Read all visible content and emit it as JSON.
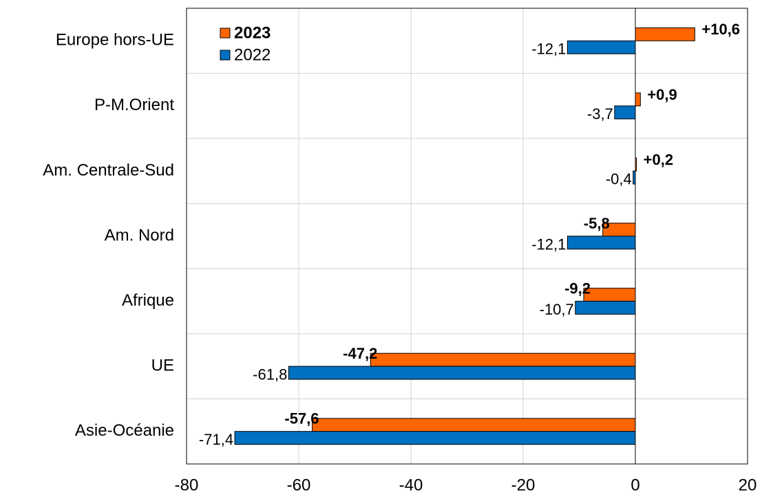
{
  "chart_data": {
    "type": "barh",
    "categories": [
      "Europe hors-UE",
      "P-M.Orient",
      "Am. Centrale-Sud",
      "Am. Nord",
      "Afrique",
      "UE",
      "Asie-Océanie"
    ],
    "series": [
      {
        "name": "2023",
        "color": "#ff6600",
        "values": [
          10.6,
          0.9,
          0.2,
          -5.8,
          -9.2,
          -47.2,
          -57.6
        ],
        "value_labels": [
          "+10,6",
          "+0,9",
          "+0,2",
          "-5,8",
          "-9,2",
          "-47,2",
          "-57,6"
        ]
      },
      {
        "name": "2022",
        "color": "#0070c0",
        "values": [
          -12.1,
          -3.7,
          -0.4,
          -12.1,
          -10.7,
          -61.8,
          -71.4
        ],
        "value_labels": [
          "-12,1",
          "-3,7",
          "-0,4",
          "-12,1",
          "-10,7",
          "-61,8",
          "-71,4"
        ]
      }
    ],
    "xlim": [
      -80,
      20
    ],
    "xticks": [
      -80,
      -60,
      -40,
      -20,
      0,
      20
    ],
    "grid": true,
    "legend": "upper left"
  }
}
